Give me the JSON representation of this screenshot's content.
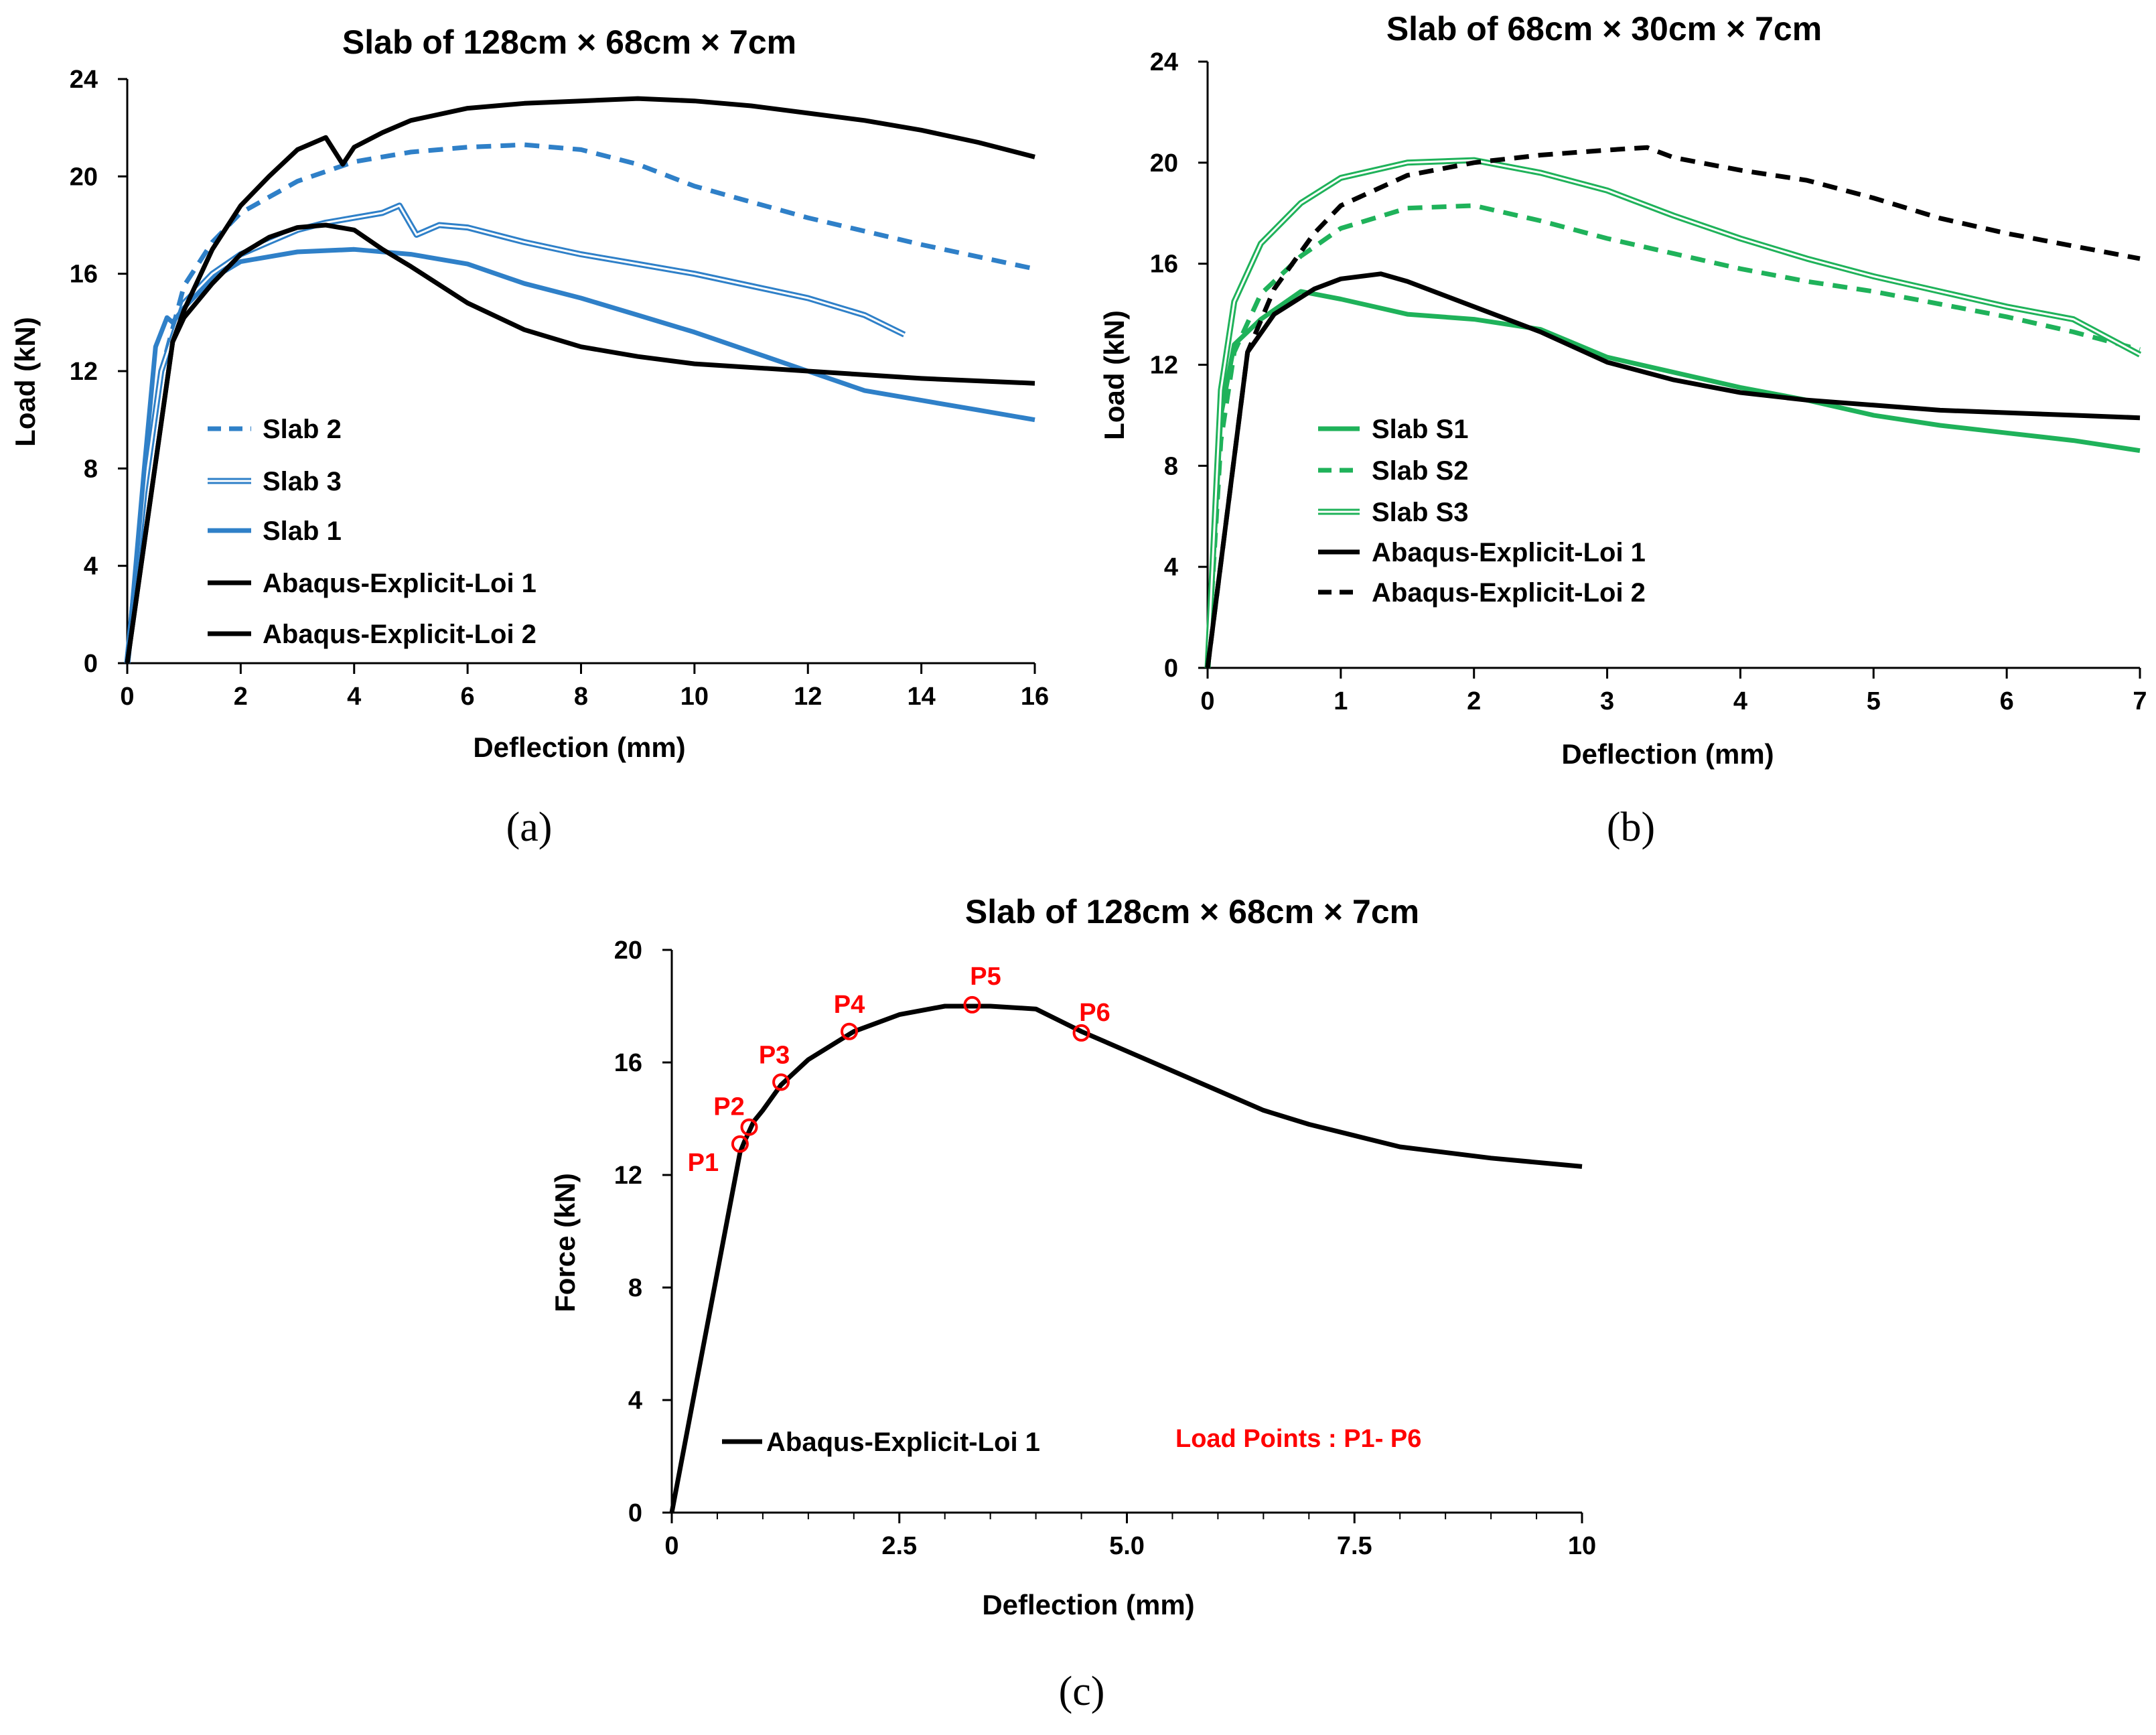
{
  "colors": {
    "blue": "#2f80c8",
    "green": "#1fb25a",
    "black": "#000000",
    "red": "#ff0000"
  },
  "chart_data": [
    {
      "type": "line",
      "panel_label": "(a)",
      "title": "Slab of 128cm ×  68cm × 7cm",
      "xlabel": "Deflection (mm)",
      "ylabel": "Load (kN)",
      "xlim": [
        0,
        16
      ],
      "ylim": [
        0,
        24
      ],
      "xticks": [
        "0",
        "2",
        "4",
        "6",
        "8",
        "10",
        "12",
        "14",
        "16"
      ],
      "yticks": [
        "0",
        "4",
        "8",
        "12",
        "16",
        "20",
        "24"
      ],
      "series": [
        {
          "name": "Slab 2",
          "color": "#2f80c8",
          "style": "dashed",
          "x": [
            0,
            0.3,
            0.6,
            1.0,
            1.5,
            2,
            3,
            4,
            5,
            6,
            7,
            8,
            9,
            10,
            12,
            14,
            16
          ],
          "y": [
            0,
            7,
            12,
            15.5,
            17.3,
            18.5,
            19.8,
            20.6,
            21.0,
            21.2,
            21.3,
            21.1,
            20.5,
            19.6,
            18.3,
            17.2,
            16.2
          ]
        },
        {
          "name": "Slab 3",
          "color": "#2f80c8",
          "style": "double",
          "x": [
            0,
            0.3,
            0.6,
            1.0,
            1.5,
            2,
            2.5,
            3,
            3.5,
            4,
            4.5,
            4.8,
            5.0,
            5.1,
            5.5,
            6,
            7,
            8,
            9,
            10,
            11,
            12,
            13,
            13.7
          ],
          "y": [
            0,
            7,
            12,
            14.8,
            16.0,
            16.8,
            17.3,
            17.8,
            18.1,
            18.3,
            18.5,
            18.8,
            18.0,
            17.6,
            18.0,
            17.9,
            17.3,
            16.8,
            16.4,
            16.0,
            15.5,
            15.0,
            14.3,
            13.5
          ]
        },
        {
          "name": "Slab 1",
          "color": "#2f80c8",
          "style": "solid",
          "x": [
            0,
            0.3,
            0.5,
            0.7,
            0.8,
            1.0,
            1.5,
            2,
            3,
            4,
            5,
            6,
            7,
            8,
            9,
            10,
            11,
            12,
            13,
            14,
            15,
            16
          ],
          "y": [
            0,
            8,
            13,
            14.2,
            14.0,
            14.6,
            15.8,
            16.5,
            16.9,
            17.0,
            16.8,
            16.4,
            15.6,
            15.0,
            14.3,
            13.6,
            12.8,
            12.0,
            11.2,
            10.8,
            10.4,
            10.0
          ]
        },
        {
          "name": "Abaqus-Explicit-Loi 1",
          "color": "#000000",
          "style": "solid",
          "x": [
            0,
            0.8,
            1.0,
            1.5,
            2,
            2.5,
            3,
            3.5,
            4,
            4.5,
            5,
            6,
            7,
            8,
            9,
            10,
            12,
            14,
            16
          ],
          "y": [
            0,
            13.2,
            14.2,
            15.6,
            16.8,
            17.5,
            17.9,
            18.0,
            17.8,
            17.0,
            16.3,
            14.8,
            13.7,
            13.0,
            12.6,
            12.3,
            12.0,
            11.7,
            11.5
          ]
        },
        {
          "name": "Abaqus-Explicit-Loi 2",
          "color": "#000000",
          "style": "solid",
          "x": [
            0,
            0.8,
            1.0,
            1.5,
            2,
            2.5,
            3,
            3.5,
            3.8,
            4,
            4.5,
            5,
            6,
            7,
            8,
            9,
            10,
            11,
            12,
            13,
            14,
            15,
            16
          ],
          "y": [
            0,
            13.2,
            14.5,
            17.0,
            18.8,
            20.0,
            21.1,
            21.6,
            20.5,
            21.2,
            21.8,
            22.3,
            22.8,
            23.0,
            23.1,
            23.2,
            23.1,
            22.9,
            22.6,
            22.3,
            21.9,
            21.4,
            20.8
          ]
        }
      ]
    },
    {
      "type": "line",
      "panel_label": "(b)",
      "title": "Slab of  68cm × 30cm × 7cm",
      "xlabel": "Deflection (mm)",
      "ylabel": "Load (kN)",
      "xlim": [
        0,
        7
      ],
      "ylim": [
        0,
        24
      ],
      "xticks": [
        "0",
        "1",
        "2",
        "3",
        "4",
        "5",
        "6",
        "7"
      ],
      "yticks": [
        "0",
        "4",
        "8",
        "12",
        "16",
        "20",
        "24"
      ],
      "series": [
        {
          "name": "Slab S1",
          "color": "#1fb25a",
          "style": "solid",
          "x": [
            0,
            0.1,
            0.2,
            0.4,
            0.7,
            1.0,
            1.5,
            2,
            2.5,
            3,
            3.5,
            4,
            4.5,
            5,
            5.5,
            6,
            6.5,
            7
          ],
          "y": [
            0,
            10,
            12.8,
            13.8,
            14.9,
            14.6,
            14.0,
            13.8,
            13.4,
            12.3,
            11.7,
            11.1,
            10.6,
            10.0,
            9.6,
            9.3,
            9.0,
            8.6
          ]
        },
        {
          "name": "Slab S2",
          "color": "#1fb25a",
          "style": "dashed",
          "x": [
            0,
            0.1,
            0.2,
            0.4,
            0.7,
            1.0,
            1.5,
            2,
            2.5,
            3,
            3.5,
            4,
            4.5,
            5,
            5.5,
            6,
            6.5,
            7
          ],
          "y": [
            0,
            9,
            12.5,
            14.8,
            16.3,
            17.4,
            18.2,
            18.3,
            17.7,
            17.0,
            16.4,
            15.8,
            15.3,
            14.9,
            14.4,
            13.9,
            13.3,
            12.6
          ]
        },
        {
          "name": "Slab S3",
          "color": "#1fb25a",
          "style": "double",
          "x": [
            0,
            0.1,
            0.2,
            0.4,
            0.7,
            1.0,
            1.5,
            2,
            2.5,
            3,
            3.5,
            4,
            4.5,
            5,
            5.5,
            6,
            6.5,
            7
          ],
          "y": [
            0,
            11,
            14.5,
            16.8,
            18.4,
            19.4,
            20.0,
            20.1,
            19.6,
            18.9,
            17.9,
            17.0,
            16.2,
            15.5,
            14.9,
            14.3,
            13.8,
            12.4
          ]
        },
        {
          "name": "Abaqus-Explicit-Loi 1",
          "color": "#000000",
          "style": "solid",
          "x": [
            0,
            0.3,
            0.5,
            0.8,
            1.0,
            1.3,
            1.5,
            2,
            2.5,
            3,
            3.5,
            4,
            4.5,
            5,
            5.5,
            6,
            6.5,
            7
          ],
          "y": [
            0,
            12.5,
            14.0,
            15.0,
            15.4,
            15.6,
            15.3,
            14.3,
            13.3,
            12.1,
            11.4,
            10.9,
            10.6,
            10.4,
            10.2,
            10.1,
            10.0,
            9.9
          ]
        },
        {
          "name": "Abaqus-Explicit-Loi 2",
          "color": "#000000",
          "style": "dashed",
          "x": [
            0,
            0.3,
            0.5,
            0.8,
            1.0,
            1.5,
            2,
            2.5,
            3,
            3.3,
            3.5,
            4,
            4.5,
            5,
            5.5,
            6,
            6.5,
            7
          ],
          "y": [
            0,
            12.5,
            15.0,
            17.2,
            18.3,
            19.5,
            20.0,
            20.3,
            20.5,
            20.6,
            20.2,
            19.7,
            19.3,
            18.6,
            17.8,
            17.2,
            16.7,
            16.2
          ]
        }
      ]
    },
    {
      "type": "line",
      "panel_label": "(c)",
      "title": "Slab of 128cm ×  68cm × 7cm",
      "xlabel": "Deflection (mm)",
      "ylabel": "Force (kN)",
      "xlim": [
        0,
        10
      ],
      "ylim": [
        0,
        20
      ],
      "xticks": [
        "0",
        "2.5",
        "5.0",
        "7.5",
        "10"
      ],
      "yticks": [
        "0",
        "4",
        "8",
        "12",
        "16",
        "20"
      ],
      "annotation": "Load Points : P1- P6",
      "series": [
        {
          "name": "Abaqus-Explicit-Loi 1",
          "color": "#000000",
          "style": "solid",
          "x": [
            0,
            0.75,
            0.8,
            0.9,
            1.0,
            1.2,
            1.5,
            2,
            2.5,
            3,
            3.5,
            4,
            4.5,
            5,
            5.5,
            6,
            6.5,
            7,
            7.5,
            8,
            9,
            10
          ],
          "y": [
            0,
            12.8,
            13.2,
            13.9,
            14.3,
            15.2,
            16.1,
            17.1,
            17.7,
            18.0,
            18.0,
            17.9,
            17.1,
            16.4,
            15.7,
            15.0,
            14.3,
            13.8,
            13.4,
            13.0,
            12.6,
            12.3
          ]
        }
      ],
      "points": [
        {
          "label": "P1",
          "x": 0.75,
          "y": 13.1
        },
        {
          "label": "P2",
          "x": 0.85,
          "y": 13.7
        },
        {
          "label": "P3",
          "x": 1.2,
          "y": 15.3
        },
        {
          "label": "P4",
          "x": 1.95,
          "y": 17.1
        },
        {
          "label": "P5",
          "x": 3.3,
          "y": 18.05
        },
        {
          "label": "P6",
          "x": 4.5,
          "y": 17.05
        }
      ]
    }
  ]
}
